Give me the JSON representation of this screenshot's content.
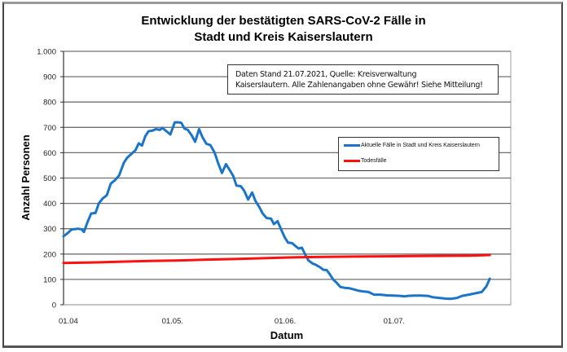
{
  "chart_data": {
    "type": "line",
    "title": "Entwicklung der bestätigten SARS-CoV-2 Fälle in Stadt und Kreis Kaiserslautern",
    "title_lines": [
      "Entwicklung der bestätigten SARS-CoV-2 Fälle in",
      "Stadt und Kreis Kaiserslautern"
    ],
    "xlabel": "Datum",
    "ylabel": "Anzahl Personen",
    "ylim": [
      0,
      1000
    ],
    "yticks": [
      "0",
      "100",
      "200",
      "300",
      "400",
      "500",
      "600",
      "700",
      "800",
      "900",
      "1.000"
    ],
    "xticks": [
      {
        "label": "01.04",
        "day": 0
      },
      {
        "label": "01.05.",
        "day": 30
      },
      {
        "label": "01.06.",
        "day": 61
      },
      {
        "label": "01.07.",
        "day": 91
      }
    ],
    "x_unit": "days since 01.04.2021",
    "grid": "horizontal",
    "legend_position": "inside-right",
    "annotation": {
      "line1": "Daten Stand 21.07.2021, Quelle: Kreisverwaltung",
      "line2": "Kaiserslautern. Alle Zahlenangaben ohne Gewähr! Siehe Mitteilung!"
    },
    "series": [
      {
        "name": "Aktuelle Fälle in Stadt und Kreis Kaiserslautern",
        "color": "#1a75c8",
        "points": [
          [
            0,
            270
          ],
          [
            1.3,
            285
          ],
          [
            2.2,
            297
          ],
          [
            4,
            300
          ],
          [
            4.9,
            298
          ],
          [
            5.6,
            287
          ],
          [
            6.7,
            330
          ],
          [
            7.6,
            360
          ],
          [
            8.8,
            362
          ],
          [
            9.7,
            400
          ],
          [
            10.8,
            420
          ],
          [
            11.9,
            432
          ],
          [
            13,
            478
          ],
          [
            14.2,
            492
          ],
          [
            15.3,
            510
          ],
          [
            16.6,
            560
          ],
          [
            17.5,
            580
          ],
          [
            18.9,
            598
          ],
          [
            19.8,
            610
          ],
          [
            20.7,
            637
          ],
          [
            21.6,
            628
          ],
          [
            22.5,
            665
          ],
          [
            23.4,
            685
          ],
          [
            24.5,
            687
          ],
          [
            25.4,
            693
          ],
          [
            26.5,
            690
          ],
          [
            27.2,
            698
          ],
          [
            28.3,
            685
          ],
          [
            29.4,
            672
          ],
          [
            30.6,
            720
          ],
          [
            31.5,
            720
          ],
          [
            32.4,
            718
          ],
          [
            33.3,
            695
          ],
          [
            34.2,
            690
          ],
          [
            35.3,
            668
          ],
          [
            36.2,
            643
          ],
          [
            37.3,
            693
          ],
          [
            38.2,
            662
          ],
          [
            39.3,
            635
          ],
          [
            40.4,
            630
          ],
          [
            41.6,
            600
          ],
          [
            42.5,
            560
          ],
          [
            43.6,
            520
          ],
          [
            44.7,
            555
          ],
          [
            45.8,
            530
          ],
          [
            46.7,
            508
          ],
          [
            47.6,
            470
          ],
          [
            48.8,
            468
          ],
          [
            49.7,
            450
          ],
          [
            50.8,
            415
          ],
          [
            51.9,
            443
          ],
          [
            52.8,
            410
          ],
          [
            53.9,
            385
          ],
          [
            54.8,
            360
          ],
          [
            55.9,
            342
          ],
          [
            57.1,
            340
          ],
          [
            57.9,
            318
          ],
          [
            58.9,
            330
          ],
          [
            59.8,
            300
          ],
          [
            60.9,
            265
          ],
          [
            61.8,
            245
          ],
          [
            62.9,
            243
          ],
          [
            63.8,
            232
          ],
          [
            64.7,
            222
          ],
          [
            65.6,
            225
          ],
          [
            66.5,
            198
          ],
          [
            67.4,
            175
          ],
          [
            68.5,
            163
          ],
          [
            69.4,
            158
          ],
          [
            70.6,
            148
          ],
          [
            71.5,
            138
          ],
          [
            72.4,
            137
          ],
          [
            73.3,
            120
          ],
          [
            74.2,
            100
          ],
          [
            75.3,
            85
          ],
          [
            76.2,
            70
          ],
          [
            77.3,
            67
          ],
          [
            78.7,
            65
          ],
          [
            80,
            60
          ],
          [
            81.3,
            55
          ],
          [
            82.7,
            52
          ],
          [
            84,
            50
          ],
          [
            85.4,
            40
          ],
          [
            87.2,
            40
          ],
          [
            89,
            37
          ],
          [
            90.8,
            36
          ],
          [
            92.6,
            35
          ],
          [
            93.9,
            33
          ],
          [
            94.8,
            35
          ],
          [
            96.6,
            36
          ],
          [
            98.4,
            36
          ],
          [
            100.2,
            35
          ],
          [
            101.6,
            30
          ],
          [
            103.4,
            27
          ],
          [
            105.2,
            24
          ],
          [
            106.5,
            23
          ],
          [
            108.3,
            27
          ],
          [
            109.7,
            35
          ],
          [
            111.5,
            40
          ],
          [
            113.3,
            45
          ],
          [
            115.1,
            50
          ],
          [
            116.4,
            73
          ],
          [
            117.3,
            103
          ]
        ]
      },
      {
        "name": "Todesfälle",
        "color": "#ff1010",
        "points": [
          [
            0,
            165
          ],
          [
            8,
            167
          ],
          [
            16,
            170
          ],
          [
            24,
            173
          ],
          [
            32,
            175
          ],
          [
            40,
            178
          ],
          [
            48,
            181
          ],
          [
            56,
            184
          ],
          [
            64,
            187
          ],
          [
            72,
            189
          ],
          [
            80,
            190
          ],
          [
            88,
            191
          ],
          [
            96,
            192
          ],
          [
            104,
            193
          ],
          [
            112,
            194
          ],
          [
            117.3,
            196
          ]
        ]
      }
    ]
  }
}
